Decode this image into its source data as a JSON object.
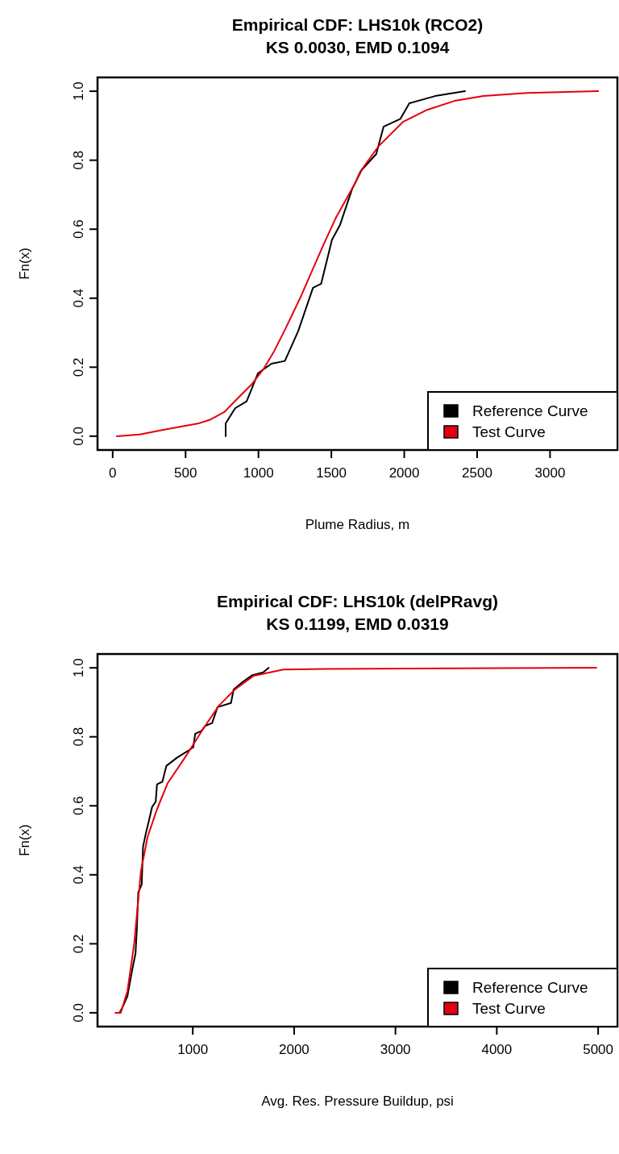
{
  "chart_data": [
    {
      "type": "line",
      "title": "Empirical CDF: LHS10k (RCO2)",
      "subtitle": "KS 0.0030, EMD 0.1094",
      "xlabel": "Plume Radius, m",
      "ylabel": "Fn(x)",
      "xlim": [
        -104,
        3462
      ],
      "ylim": [
        -0.04,
        1.04
      ],
      "xticks": [
        0,
        500,
        1000,
        1500,
        2000,
        2500,
        3000
      ],
      "yticks": [
        {
          "value": 0,
          "label": "0.0"
        },
        {
          "value": 0.2,
          "label": "0.2"
        },
        {
          "value": 0.4,
          "label": "0.4"
        },
        {
          "value": 0.6,
          "label": "0.6"
        },
        {
          "value": 0.8,
          "label": "0.8"
        },
        {
          "value": 1,
          "label": "1.0"
        }
      ],
      "legend": "bottom right",
      "grid": false,
      "line_style": "solid",
      "marker": "none",
      "series": [
        {
          "name": "Reference Curve",
          "color": "#000000",
          "x": [
            775,
            775,
            840,
            919,
            996,
            1089,
            1181,
            1273,
            1374,
            1430,
            1504,
            1559,
            1642,
            1707,
            1808,
            1858,
            1974,
            2035,
            2212,
            2417
          ],
          "values": [
            0,
            0.037,
            0.081,
            0.101,
            0.182,
            0.21,
            0.218,
            0.305,
            0.43,
            0.442,
            0.569,
            0.612,
            0.716,
            0.771,
            0.818,
            0.897,
            0.92,
            0.965,
            0.986,
            1.0
          ]
        },
        {
          "name": "Test Curve",
          "color": "#e3000f",
          "x": [
            28,
            185,
            369,
            590,
            664,
            766,
            849,
            959,
            1033,
            1107,
            1181,
            1292,
            1384,
            1448,
            1532,
            1661,
            1698,
            1825,
            1991,
            2157,
            2345,
            2544,
            2843,
            3330
          ],
          "values": [
            0,
            0.005,
            0.02,
            0.037,
            0.047,
            0.07,
            0.106,
            0.153,
            0.194,
            0.246,
            0.308,
            0.406,
            0.495,
            0.557,
            0.634,
            0.732,
            0.767,
            0.841,
            0.911,
            0.946,
            0.972,
            0.986,
            0.995,
            1.0
          ]
        }
      ]
    },
    {
      "type": "line",
      "title": "Empirical CDF: LHS10k (delPRavg)",
      "subtitle": "KS 0.1199, EMD 0.0319",
      "xlabel": "Avg. Res. Pressure Buildup, psi",
      "ylabel": "Fn(x)",
      "xlim": [
        60,
        5190
      ],
      "ylim": [
        -0.04,
        1.04
      ],
      "xticks": [
        1000,
        2000,
        3000,
        4000,
        5000
      ],
      "yticks": [
        {
          "value": 0,
          "label": "0.0"
        },
        {
          "value": 0.2,
          "label": "0.2"
        },
        {
          "value": 0.4,
          "label": "0.4"
        },
        {
          "value": 0.6,
          "label": "0.6"
        },
        {
          "value": 0.8,
          "label": "0.8"
        },
        {
          "value": 1,
          "label": "1.0"
        }
      ],
      "legend": "bottom right",
      "grid": false,
      "line_style": "solid",
      "marker": "none",
      "series": [
        {
          "name": "Reference Curve",
          "color": "#000000",
          "x": [
            276,
            302,
            355,
            403,
            435,
            448,
            462,
            496,
            509,
            536,
            568,
            599,
            634,
            647,
            700,
            740,
            846,
            952,
            1005,
            1024,
            1085,
            1125,
            1191,
            1244,
            1377,
            1403,
            1496,
            1589,
            1695,
            1748
          ],
          "values": [
            0,
            0.013,
            0.048,
            0.125,
            0.172,
            0.241,
            0.349,
            0.372,
            0.481,
            0.519,
            0.558,
            0.597,
            0.612,
            0.662,
            0.67,
            0.716,
            0.74,
            0.759,
            0.77,
            0.809,
            0.817,
            0.832,
            0.84,
            0.886,
            0.898,
            0.937,
            0.96,
            0.979,
            0.987,
            1.0
          ]
        },
        {
          "name": "Test Curve",
          "color": "#e3000f",
          "x": [
            236,
            289,
            355,
            422,
            488,
            554,
            647,
            753,
            939,
            1098,
            1257,
            1416,
            1602,
            1894,
            2299,
            4982
          ],
          "values": [
            0,
            0,
            0.063,
            0.2,
            0.41,
            0.51,
            0.59,
            0.666,
            0.747,
            0.821,
            0.89,
            0.937,
            0.977,
            0.995,
            0.997,
            1.0
          ]
        }
      ]
    }
  ]
}
